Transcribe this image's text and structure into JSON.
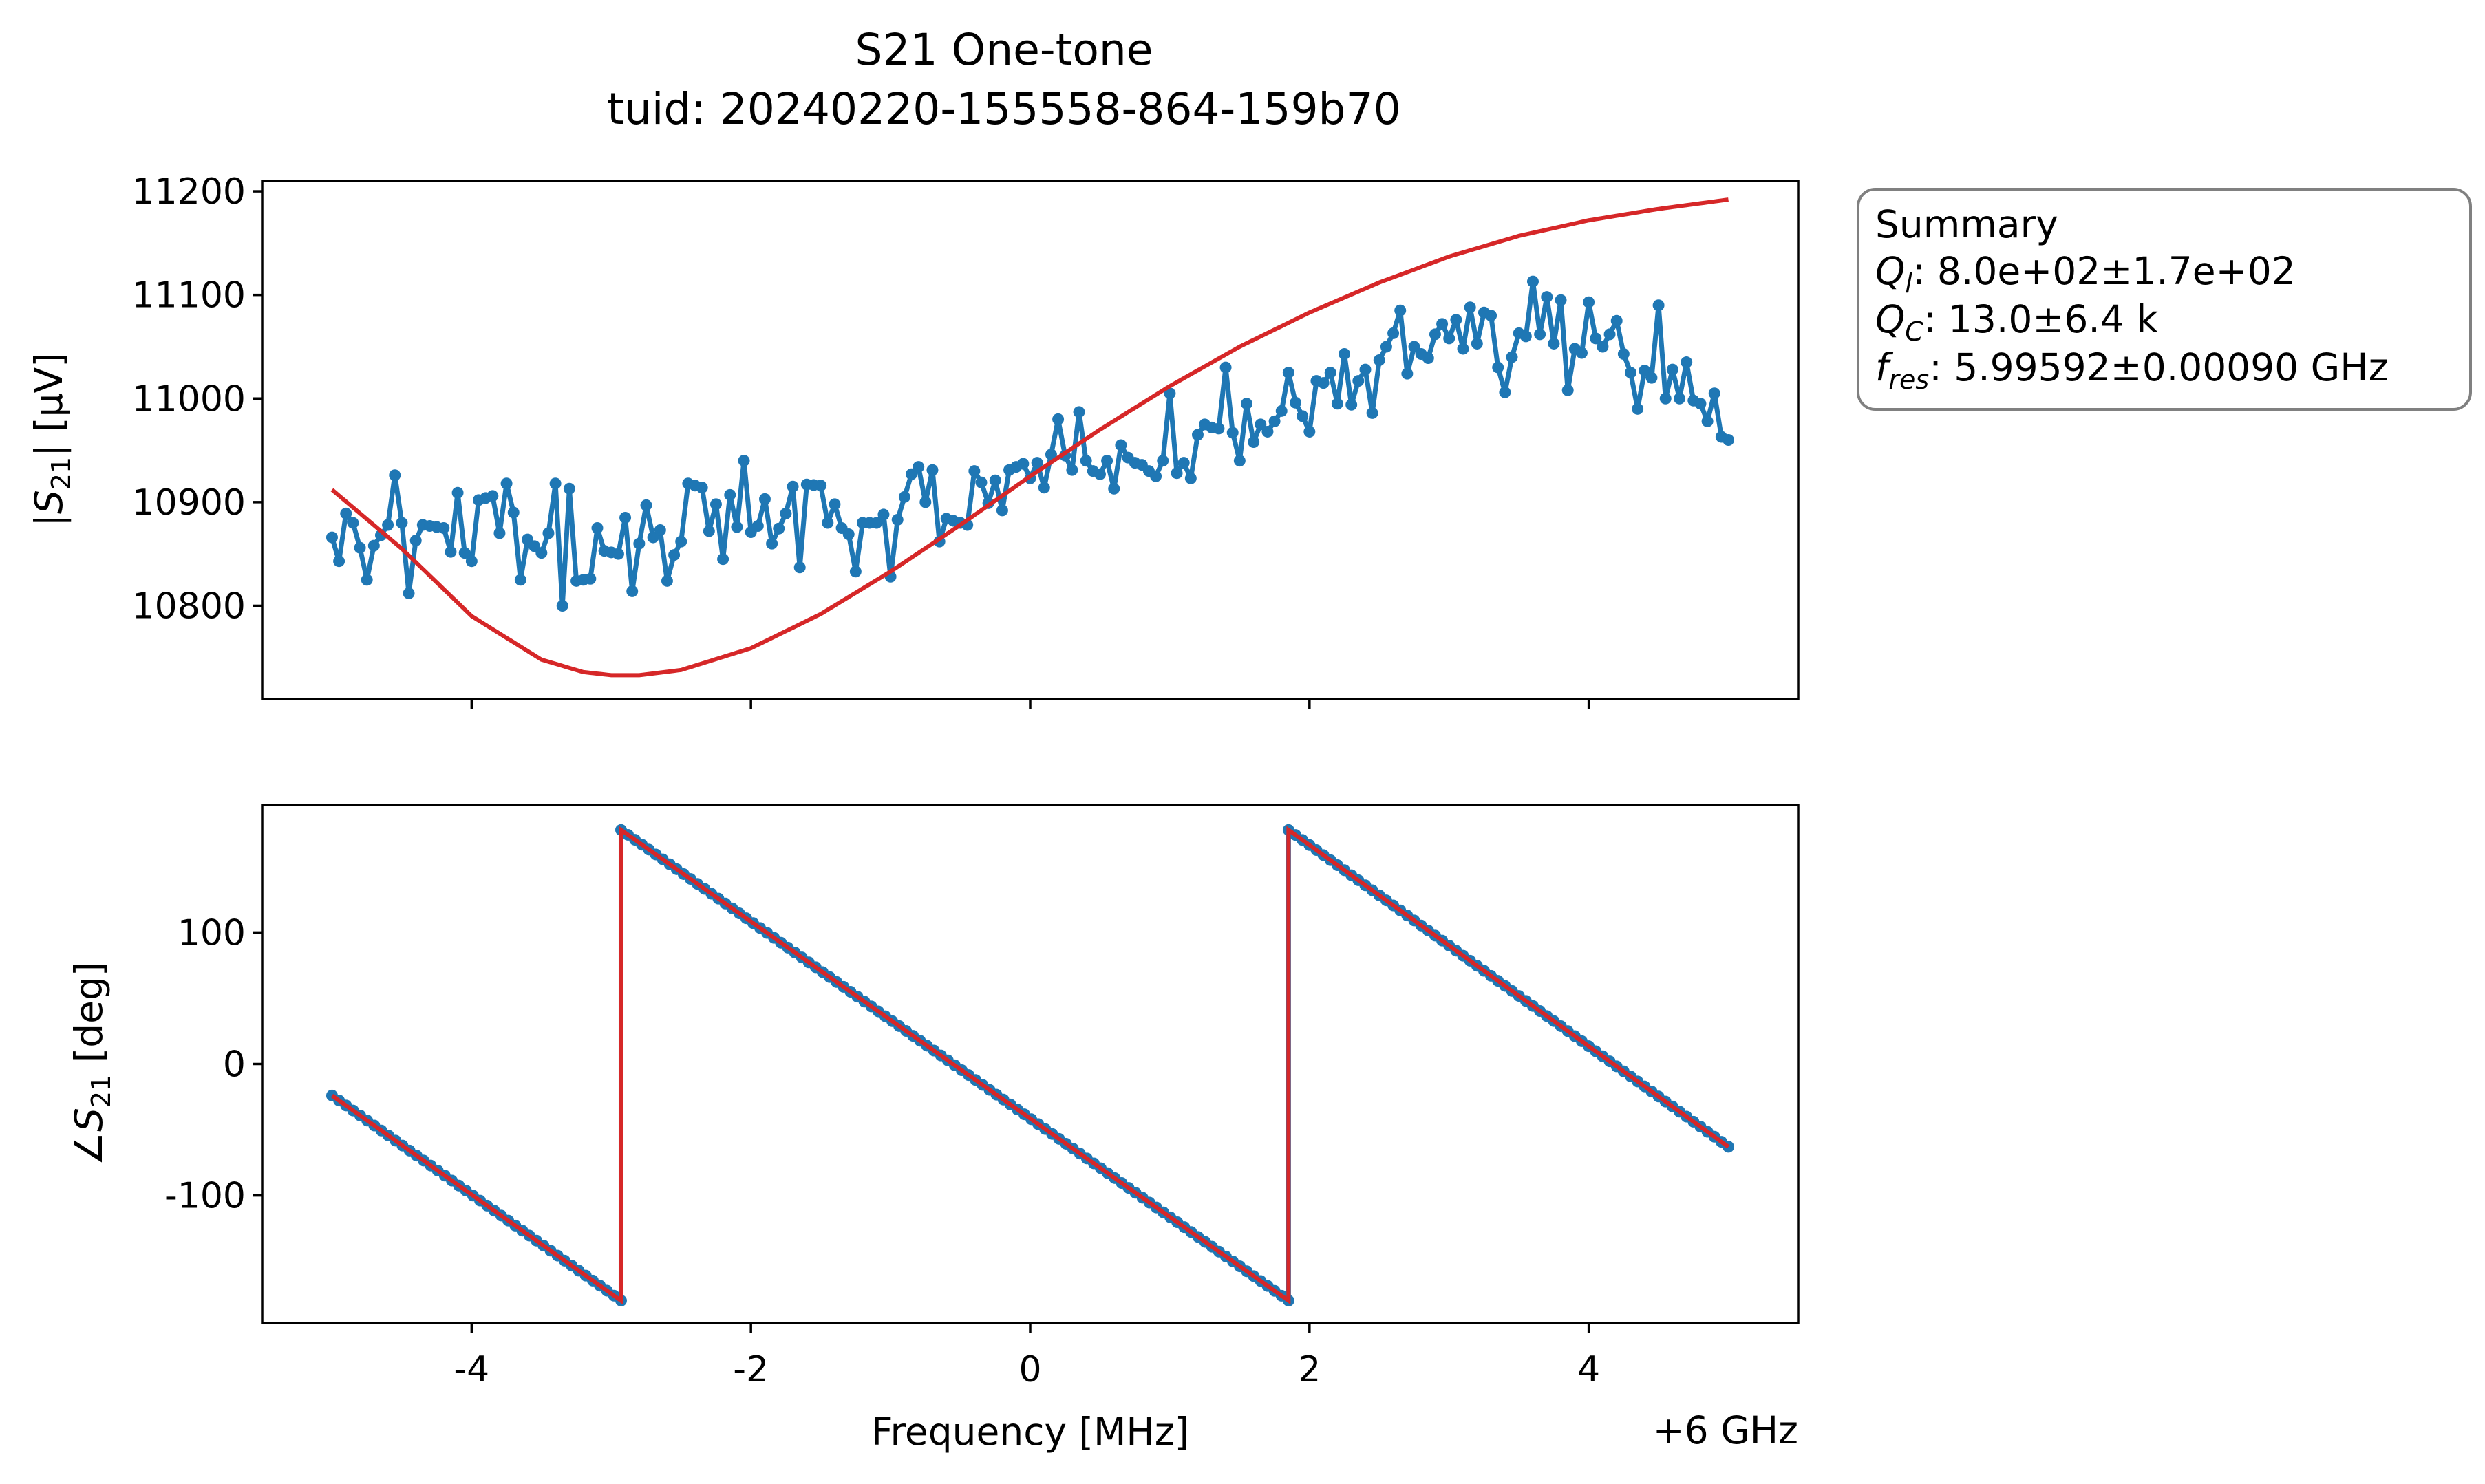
{
  "figure": {
    "title_line1": "S21 One-tone",
    "title_line2": "tuid: 20240220-155558-864-159b70",
    "x_offset_label": "+6 GHz"
  },
  "summary_box": {
    "heading": "Summary",
    "lines": [
      {
        "symbol": "Q",
        "subscript": "l",
        "text": ": 8.0e+02±1.7e+02"
      },
      {
        "symbol": "Q",
        "subscript": "C",
        "text": ": 13.0±6.4 k"
      },
      {
        "symbol": "f",
        "subscript": "res",
        "text": ": 5.99592±0.00090 GHz"
      }
    ]
  },
  "colors": {
    "data": "#1f77b4",
    "fit": "#d62728",
    "axes": "#000000",
    "box_edge": "#808080"
  },
  "chart_data": [
    {
      "type": "line",
      "panel": "magnitude",
      "ylabel": {
        "prefix": "|",
        "symbol": "S",
        "subscript": "21",
        "suffix": "| [µV]"
      },
      "xlim": [
        -5.5,
        5.5
      ],
      "ylim": [
        10710,
        11210
      ],
      "yticks": [
        10800,
        10900,
        11000,
        11100,
        11200
      ],
      "xticks": [
        -4,
        -2,
        0,
        2,
        4
      ],
      "x_range": [
        -5.0,
        5.0
      ],
      "points_count": 201,
      "grid": false,
      "series": [
        {
          "style": "line+markers",
          "color": "#1f77b4",
          "anchors": [
            [
              -5.0,
              10866
            ],
            [
              -4.95,
              10843
            ],
            [
              -4.9,
              10889
            ],
            [
              -4.85,
              10880
            ],
            [
              -4.8,
              10856
            ],
            [
              -4.75,
              10825
            ],
            [
              -4.7,
              10858
            ],
            [
              -4.6,
              10878
            ],
            [
              -4.55,
              10926
            ],
            [
              -4.5,
              10880
            ],
            [
              -4.45,
              10812
            ],
            [
              -4.4,
              10863
            ],
            [
              -4.35,
              10878
            ],
            [
              -4.2,
              10875
            ],
            [
              -4.15,
              10852
            ],
            [
              -4.1,
              10909
            ],
            [
              -4.05,
              10851
            ],
            [
              -4.0,
              10843
            ],
            [
              -3.95,
              10902
            ],
            [
              -3.85,
              10906
            ],
            [
              -3.8,
              10870
            ],
            [
              -3.75,
              10918
            ],
            [
              -3.7,
              10890
            ],
            [
              -3.65,
              10825
            ],
            [
              -3.6,
              10864
            ],
            [
              -3.5,
              10851
            ],
            [
              -3.45,
              10870
            ],
            [
              -3.4,
              10918
            ],
            [
              -3.35,
              10800
            ],
            [
              -3.3,
              10913
            ],
            [
              -3.25,
              10824
            ],
            [
              -3.15,
              10826
            ],
            [
              -3.1,
              10875
            ],
            [
              -3.05,
              10853
            ],
            [
              -2.95,
              10850
            ],
            [
              -2.9,
              10885
            ],
            [
              -2.85,
              10814
            ],
            [
              -2.8,
              10860
            ],
            [
              -2.75,
              10897
            ],
            [
              -2.7,
              10866
            ],
            [
              -2.65,
              10873
            ],
            [
              -2.6,
              10824
            ],
            [
              -2.55,
              10849
            ],
            [
              -2.5,
              10862
            ],
            [
              -2.45,
              10918
            ],
            [
              -2.35,
              10914
            ],
            [
              -2.3,
              10872
            ],
            [
              -2.25,
              10898
            ],
            [
              -2.2,
              10845
            ],
            [
              -2.15,
              10907
            ],
            [
              -2.1,
              10876
            ],
            [
              -2.05,
              10940
            ],
            [
              -2.0,
              10871
            ],
            [
              -1.95,
              10877
            ],
            [
              -1.9,
              10903
            ],
            [
              -1.85,
              10860
            ],
            [
              -1.75,
              10889
            ],
            [
              -1.7,
              10915
            ],
            [
              -1.65,
              10837
            ],
            [
              -1.6,
              10917
            ],
            [
              -1.5,
              10916
            ],
            [
              -1.45,
              10880
            ],
            [
              -1.4,
              10898
            ],
            [
              -1.35,
              10875
            ],
            [
              -1.3,
              10869
            ],
            [
              -1.25,
              10833
            ],
            [
              -1.2,
              10880
            ],
            [
              -1.1,
              10880
            ],
            [
              -1.05,
              10888
            ],
            [
              -1.0,
              10828
            ],
            [
              -0.95,
              10883
            ],
            [
              -0.85,
              10927
            ],
            [
              -0.8,
              10934
            ],
            [
              -0.75,
              10900
            ],
            [
              -0.7,
              10931
            ],
            [
              -0.65,
              10862
            ],
            [
              -0.6,
              10884
            ],
            [
              -0.45,
              10878
            ],
            [
              -0.4,
              10930
            ],
            [
              -0.35,
              10919
            ],
            [
              -0.3,
              10899
            ],
            [
              -0.25,
              10921
            ],
            [
              -0.2,
              10892
            ],
            [
              -0.15,
              10931
            ],
            [
              -0.05,
              10937
            ],
            [
              0.0,
              10923
            ],
            [
              0.05,
              10938
            ],
            [
              0.1,
              10914
            ],
            [
              0.15,
              10946
            ],
            [
              0.2,
              10980
            ],
            [
              0.25,
              10945
            ],
            [
              0.3,
              10931
            ],
            [
              0.35,
              10987
            ],
            [
              0.4,
              10940
            ],
            [
              0.45,
              10930
            ],
            [
              0.5,
              10927
            ],
            [
              0.55,
              10940
            ],
            [
              0.6,
              10913
            ],
            [
              0.65,
              10955
            ],
            [
              0.7,
              10943
            ],
            [
              0.75,
              10938
            ],
            [
              0.8,
              10936
            ],
            [
              0.85,
              10930
            ],
            [
              0.9,
              10925
            ],
            [
              0.95,
              10940
            ],
            [
              1.0,
              11005
            ],
            [
              1.05,
              10928
            ],
            [
              1.1,
              10938
            ],
            [
              1.15,
              10923
            ],
            [
              1.2,
              10965
            ],
            [
              1.25,
              10975
            ],
            [
              1.3,
              10972
            ],
            [
              1.35,
              10971
            ],
            [
              1.4,
              11030
            ],
            [
              1.45,
              10967
            ],
            [
              1.5,
              10940
            ],
            [
              1.55,
              10995
            ],
            [
              1.6,
              10958
            ],
            [
              1.65,
              10975
            ],
            [
              1.7,
              10968
            ],
            [
              1.8,
              10988
            ],
            [
              1.85,
              11025
            ],
            [
              1.9,
              10996
            ],
            [
              1.95,
              10983
            ],
            [
              2.0,
              10968
            ],
            [
              2.05,
              11017
            ],
            [
              2.1,
              11015
            ],
            [
              2.15,
              11025
            ],
            [
              2.2,
              10995
            ],
            [
              2.25,
              11043
            ],
            [
              2.3,
              10994
            ],
            [
              2.35,
              11017
            ],
            [
              2.4,
              11028
            ],
            [
              2.45,
              10986
            ],
            [
              2.5,
              11037
            ],
            [
              2.6,
              11063
            ],
            [
              2.65,
              11085
            ],
            [
              2.7,
              11024
            ],
            [
              2.75,
              11050
            ],
            [
              2.8,
              11043
            ],
            [
              2.85,
              11039
            ],
            [
              2.9,
              11062
            ],
            [
              2.95,
              11072
            ],
            [
              3.0,
              11058
            ],
            [
              3.05,
              11076
            ],
            [
              3.1,
              11048
            ],
            [
              3.15,
              11088
            ],
            [
              3.2,
              11053
            ],
            [
              3.25,
              11083
            ],
            [
              3.3,
              11080
            ],
            [
              3.35,
              11030
            ],
            [
              3.4,
              11006
            ],
            [
              3.45,
              11040
            ],
            [
              3.5,
              11063
            ],
            [
              3.55,
              11060
            ],
            [
              3.6,
              11113
            ],
            [
              3.65,
              11062
            ],
            [
              3.7,
              11098
            ],
            [
              3.75,
              11053
            ],
            [
              3.8,
              11095
            ],
            [
              3.85,
              11008
            ],
            [
              3.9,
              11048
            ],
            [
              3.95,
              11044
            ],
            [
              4.0,
              11093
            ],
            [
              4.05,
              11058
            ],
            [
              4.1,
              11050
            ],
            [
              4.15,
              11062
            ],
            [
              4.2,
              11075
            ],
            [
              4.25,
              11043
            ],
            [
              4.3,
              11025
            ],
            [
              4.35,
              10990
            ],
            [
              4.4,
              11027
            ],
            [
              4.45,
              11020
            ],
            [
              4.5,
              11090
            ],
            [
              4.55,
              11000
            ],
            [
              4.6,
              11028
            ],
            [
              4.65,
              11000
            ],
            [
              4.7,
              11035
            ],
            [
              4.75,
              10998
            ],
            [
              4.8,
              10995
            ],
            [
              4.85,
              10978
            ],
            [
              4.9,
              11005
            ],
            [
              4.95,
              10963
            ],
            [
              5.0,
              10960
            ]
          ]
        },
        {
          "style": "line",
          "color": "#d62728",
          "anchors": [
            [
              -5.0,
              10912
            ],
            [
              -4.5,
              10855
            ],
            [
              -4.0,
              10790
            ],
            [
              -3.5,
              10748
            ],
            [
              -3.2,
              10736
            ],
            [
              -3.0,
              10733
            ],
            [
              -2.8,
              10733
            ],
            [
              -2.5,
              10738
            ],
            [
              -2.0,
              10759
            ],
            [
              -1.5,
              10792
            ],
            [
              -1.0,
              10833
            ],
            [
              -0.5,
              10878
            ],
            [
              0.0,
              10925
            ],
            [
              0.5,
              10970
            ],
            [
              1.0,
              11012
            ],
            [
              1.5,
              11050
            ],
            [
              2.0,
              11083
            ],
            [
              2.5,
              11112
            ],
            [
              3.0,
              11137
            ],
            [
              3.5,
              11157
            ],
            [
              4.0,
              11172
            ],
            [
              4.5,
              11183
            ],
            [
              5.0,
              11192
            ]
          ]
        }
      ]
    },
    {
      "type": "line",
      "panel": "phase",
      "ylabel": {
        "prefix": "∠",
        "symbol": "S",
        "subscript": "21",
        "suffix": " [deg]"
      },
      "xlabel": "Frequency [MHz]",
      "xlim": [
        -5.5,
        5.5
      ],
      "ylim": [
        -197,
        197
      ],
      "yticks": [
        -100,
        0,
        100
      ],
      "ytick_labels": [
        "-100",
        "0",
        "100"
      ],
      "xticks": [
        -4,
        -2,
        0,
        2,
        4
      ],
      "grid": false,
      "series": [
        {
          "style": "line+markers",
          "color": "#1f77b4",
          "segments": [
            {
              "x": [
                -5.0,
                -2.93
              ],
              "y": [
                -24,
                -180
              ]
            },
            {
              "x": [
                -2.93,
                1.85
              ],
              "y": [
                178,
                -180
              ]
            },
            {
              "x": [
                1.85,
                5.0
              ],
              "y": [
                178,
                -63
              ]
            }
          ]
        },
        {
          "style": "line",
          "color": "#d62728",
          "segments": [
            {
              "x": [
                -5.0,
                -2.93
              ],
              "y": [
                -24,
                -180
              ]
            },
            {
              "x": [
                -2.93,
                1.85
              ],
              "y": [
                178,
                -180
              ]
            },
            {
              "x": [
                1.85,
                5.0
              ],
              "y": [
                178,
                -63
              ]
            }
          ]
        }
      ]
    }
  ]
}
